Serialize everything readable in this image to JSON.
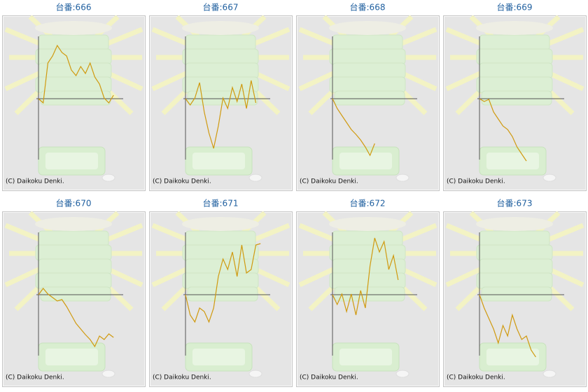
{
  "panels": [
    {
      "title": "台番:666",
      "credit": "(C) Daikoku Denki.",
      "values": [
        0,
        -6,
        51,
        61,
        76,
        66,
        61,
        41,
        33,
        46,
        36,
        51,
        31,
        21,
        1,
        -6,
        5
      ]
    },
    {
      "title": "台番:667",
      "credit": "(C) Daikoku Denki.",
      "values": [
        0,
        -9,
        1,
        23,
        -19,
        -49,
        -71,
        -39,
        1,
        -14,
        16,
        -4,
        21,
        -14,
        26,
        -6
      ]
    },
    {
      "title": "台番:668",
      "credit": "(C) Daikoku Denki.",
      "values": [
        0,
        -14,
        -24,
        -34,
        -44,
        -51,
        -59,
        -69,
        -81,
        -64
      ]
    },
    {
      "title": "台番:669",
      "credit": "(C) Daikoku Denki.",
      "values": [
        0,
        -4,
        -1,
        -19,
        -29,
        -39,
        -44,
        -54,
        -69,
        -79,
        -89
      ]
    },
    {
      "title": "台番:670",
      "credit": "(C) Daikoku Denki.",
      "values": [
        0,
        9,
        1,
        -4,
        -9,
        -7,
        -17,
        -29,
        -41,
        -49,
        -57,
        -64,
        -74,
        -59,
        -64,
        -56,
        -61
      ]
    },
    {
      "title": "台番:671",
      "credit": "(C) Daikoku Denki.",
      "values": [
        0,
        -29,
        -39,
        -19,
        -24,
        -39,
        -19,
        26,
        51,
        36,
        61,
        26,
        71,
        31,
        36,
        71,
        73
      ]
    },
    {
      "title": "台番:672",
      "credit": "(C) Daikoku Denki.",
      "values": [
        0,
        -14,
        1,
        -24,
        1,
        -29,
        6,
        -19,
        41,
        81,
        61,
        76,
        36,
        56,
        21
      ]
    },
    {
      "title": "台番:673",
      "credit": "(C) Daikoku Denki.",
      "values": [
        0,
        -19,
        -34,
        -49,
        -69,
        -44,
        -59,
        -29,
        -49,
        -64,
        -59,
        -79,
        -89
      ]
    }
  ]
}
